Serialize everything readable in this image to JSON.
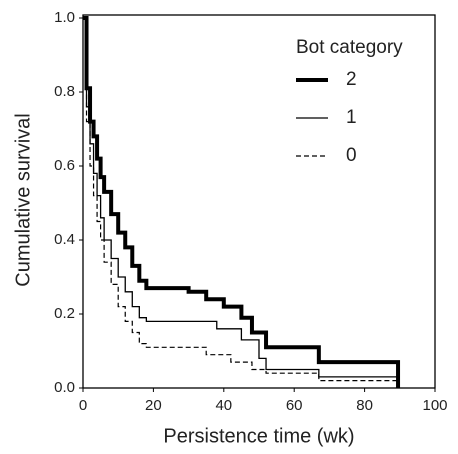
{
  "chart_data": {
    "type": "step",
    "x_label": "Persistence time (wk)",
    "y_label": "Cumulative survival",
    "legend_title": "Bot category",
    "legend_position": "upper right",
    "xlim": [
      0,
      100
    ],
    "xticks": [
      0,
      20,
      40,
      60,
      80,
      100
    ],
    "ylim": [
      0,
      1
    ],
    "yticks": [
      {
        "value": 0,
        "label": "0.0"
      },
      0.2,
      0.4,
      0.6,
      0.8,
      {
        "value": 1,
        "label": "1.0"
      }
    ],
    "series": [
      {
        "name": "2",
        "color": "#000000",
        "width": 4,
        "dash": "solid",
        "x": [
          0,
          1,
          2,
          3,
          4,
          5,
          6,
          8,
          10,
          12,
          14,
          16,
          18,
          25,
          30,
          35,
          40,
          45,
          48,
          52,
          67,
          89.5
        ],
        "values": [
          1.0,
          0.81,
          0.72,
          0.68,
          0.62,
          0.57,
          0.53,
          0.47,
          0.42,
          0.38,
          0.33,
          0.29,
          0.27,
          0.27,
          0.26,
          0.24,
          0.22,
          0.19,
          0.15,
          0.11,
          0.07,
          0
        ]
      },
      {
        "name": "1",
        "color": "#000000",
        "width": 1.3,
        "dash": "solid",
        "x": [
          0,
          1,
          2,
          3,
          4,
          5,
          6,
          8,
          10,
          12,
          14,
          16,
          18,
          30,
          38,
          45,
          50,
          52,
          67,
          89.5
        ],
        "values": [
          1.0,
          0.76,
          0.66,
          0.58,
          0.52,
          0.46,
          0.4,
          0.35,
          0.3,
          0.26,
          0.22,
          0.19,
          0.18,
          0.18,
          0.16,
          0.13,
          0.08,
          0.05,
          0.03,
          0
        ]
      },
      {
        "name": "0",
        "color": "#000000",
        "width": 1.2,
        "dash": "dashed",
        "x": [
          0,
          1,
          2,
          3,
          4,
          5,
          6,
          8,
          10,
          12,
          14,
          16,
          18,
          28,
          35,
          42,
          48,
          52,
          67,
          89.5
        ],
        "values": [
          1.0,
          0.72,
          0.6,
          0.52,
          0.45,
          0.4,
          0.34,
          0.28,
          0.22,
          0.18,
          0.15,
          0.12,
          0.11,
          0.11,
          0.09,
          0.07,
          0.05,
          0.04,
          0.02,
          0
        ]
      }
    ]
  }
}
